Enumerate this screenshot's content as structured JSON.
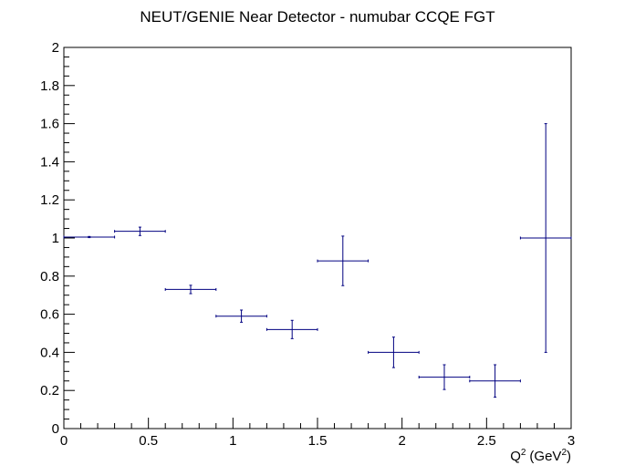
{
  "chart_data": {
    "type": "scatter",
    "title": "NEUT/GENIE Near Detector - numubar CCQE FGT",
    "xlabel": "Q",
    "xlabel_sup": "2",
    "xlabel_unit_prefix": "(GeV",
    "xlabel_unit_sup": "2",
    "xlabel_unit_suffix": ")",
    "ylabel": "",
    "xlim": [
      0,
      3
    ],
    "ylim": [
      0,
      2
    ],
    "xticks": [
      0,
      0.5,
      1,
      1.5,
      2,
      2.5,
      3
    ],
    "xtick_labels": [
      "0",
      "0.5",
      "1",
      "1.5",
      "2",
      "2.5",
      "3"
    ],
    "yticks": [
      0,
      0.2,
      0.4,
      0.6,
      0.8,
      1,
      1.2,
      1.4,
      1.6,
      1.8,
      2
    ],
    "ytick_labels": [
      "0",
      "0.2",
      "0.4",
      "0.6",
      "0.8",
      "1",
      "1.2",
      "1.4",
      "1.6",
      "1.8",
      "2"
    ],
    "grid": false,
    "marker_color": "#000080",
    "points": [
      {
        "x": 0.15,
        "xerr": 0.15,
        "y": 1.005,
        "yerr": 0.003
      },
      {
        "x": 0.45,
        "xerr": 0.15,
        "y": 1.035,
        "yerr": 0.022
      },
      {
        "x": 0.75,
        "xerr": 0.15,
        "y": 0.73,
        "yerr": 0.022
      },
      {
        "x": 1.05,
        "xerr": 0.15,
        "y": 0.59,
        "yerr": 0.032
      },
      {
        "x": 1.35,
        "xerr": 0.15,
        "y": 0.52,
        "yerr": 0.048
      },
      {
        "x": 1.65,
        "xerr": 0.15,
        "y": 0.88,
        "yerr": 0.13
      },
      {
        "x": 1.95,
        "xerr": 0.15,
        "y": 0.4,
        "yerr": 0.08
      },
      {
        "x": 2.25,
        "xerr": 0.15,
        "y": 0.27,
        "yerr": 0.065
      },
      {
        "x": 2.55,
        "xerr": 0.15,
        "y": 0.25,
        "yerr": 0.085
      },
      {
        "x": 2.85,
        "xerr": 0.15,
        "y": 1.0,
        "yerr": 0.6
      }
    ]
  }
}
